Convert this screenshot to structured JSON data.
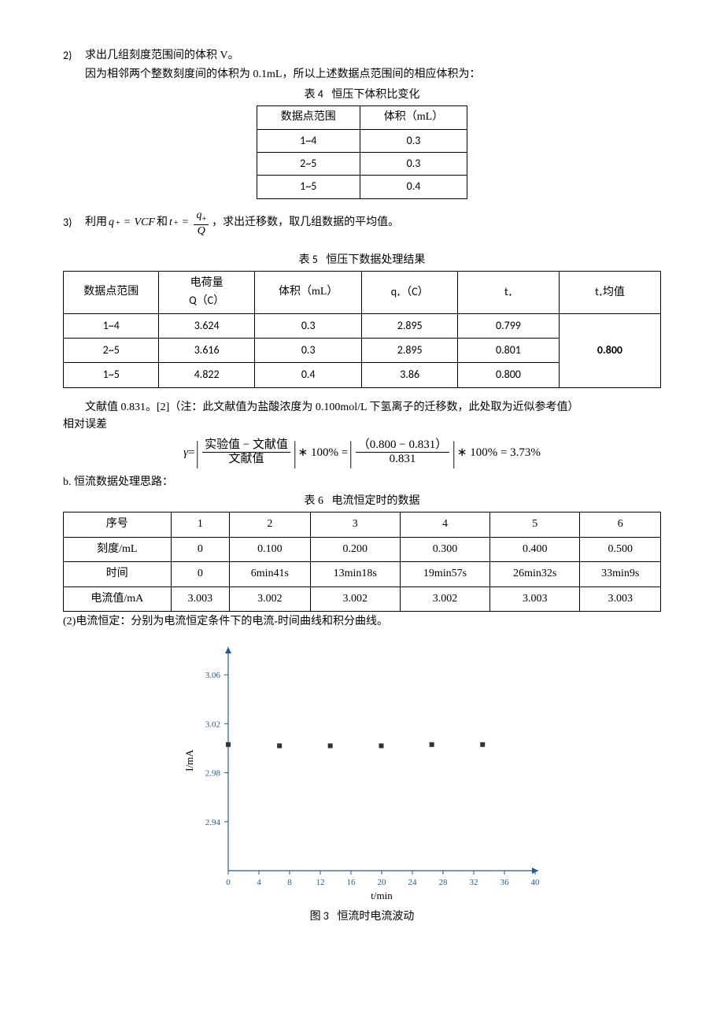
{
  "item2": {
    "num": "2)",
    "title": "求出几组刻度范围间的体积 V。",
    "note": "因为相邻两个整数刻度间的体积为 0.1mL，所以上述数据点范围间的相应体积为：",
    "caption_prefix": "表 4",
    "caption": "恒压下体积比变化"
  },
  "table4": {
    "headers": [
      "数据点范围",
      "体积（mL）"
    ],
    "rows": [
      [
        "1~4",
        "0.3"
      ],
      [
        "2~5",
        "0.3"
      ],
      [
        "1~5",
        "0.4"
      ]
    ]
  },
  "item3": {
    "num": "3)",
    "prefix": "利用",
    "eq1_lhs_q": "q",
    "eq1_lhs_sub": "+",
    "eq1_eq": "=",
    "eq1_rhs": "VCF",
    "mid": " 和",
    "eq2_lhs_t": "t",
    "eq2_lhs_sub": "+",
    "eq2_eq": "=",
    "eq2_num_q": "q",
    "eq2_num_sub": "+",
    "eq2_den": "Q",
    "suffix": "，求出迁移数，取几组数据的平均值。",
    "caption_prefix": "表 5",
    "caption": "恒压下数据处理结果"
  },
  "table5": {
    "h1": "数据点范围",
    "h2_l1": "电荷量",
    "h2_l2": "Q（C）",
    "h3": "体积（mL）",
    "h4": "q₊（C）",
    "h5": "t₊",
    "h6": "t₊均值",
    "rows": [
      [
        "1~4",
        "3.624",
        "0.3",
        "2.895",
        "0.799"
      ],
      [
        "2~5",
        "3.616",
        "0.3",
        "2.895",
        "0.801"
      ],
      [
        "1~5",
        "4.822",
        "0.4",
        "3.86",
        "0.800"
      ]
    ],
    "avg": "0.800"
  },
  "para1": "文献值 0.831。[2]（注：此文献值为盐酸浓度为 0.100mol/L 下氢离子的迁移数，此处取为近似参考值）",
  "rel_err_label": "相对误差",
  "gamma": {
    "g": "γ",
    "eq": " = ",
    "num1": "实验值 − 文献值",
    "den1": "文献值",
    "m100": " ∗ 100% = ",
    "num2": "（0.800 − 0.831）",
    "den2": "0.831",
    "m100b": " ∗ 100% = 3.73%"
  },
  "sectb": "b. 恒流数据处理思路：",
  "tbl6_caption_prefix": "表 6",
  "tbl6_caption": "电流恒定时的数据",
  "table6": {
    "r1": [
      "序号",
      "1",
      "2",
      "3",
      "4",
      "5",
      "6"
    ],
    "r2": [
      "刻度/mL",
      "0",
      "0.100",
      "0.200",
      "0.300",
      "0.400",
      "0.500"
    ],
    "r3": [
      "时间",
      "0",
      "6min41s",
      "13min18s",
      "19min57s",
      "26min32s",
      "33min9s"
    ],
    "r4": [
      "电流值/mA",
      "3.003",
      "3.002",
      "3.002",
      "3.002",
      "3.003",
      "3.003"
    ]
  },
  "note2": "(2)电流恒定：分别为电流恒定条件下的电流-时间曲线和积分曲线。",
  "fig3_caption_prefix": "图 3",
  "fig3_caption": "恒流时电流波动",
  "chart": {
    "type": "scatter",
    "y_label": "I/mA",
    "x_label": "t/min",
    "xlim": [
      0,
      40
    ],
    "xtick_step": 4,
    "ylim": [
      2.9,
      3.08
    ],
    "ytick_step": 0.04,
    "points_x": [
      0,
      6.68,
      13.3,
      19.95,
      26.53,
      33.15
    ],
    "points_y": [
      3.003,
      3.002,
      3.002,
      3.002,
      3.003,
      3.003
    ],
    "marker": "square",
    "marker_color": "#333333",
    "axis_color": "#255992",
    "tick_font_size": 11,
    "label_font_size": 13,
    "background": "#ffffff"
  }
}
